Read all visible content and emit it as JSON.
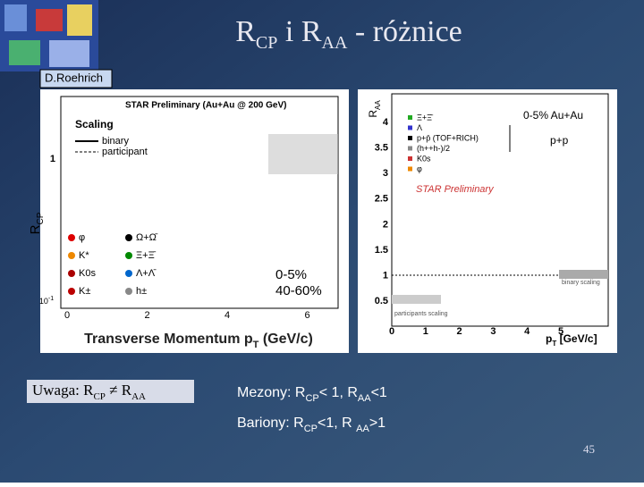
{
  "header": {
    "title": [
      "R",
      "CP",
      " i  R",
      "AA",
      " - różnice"
    ],
    "author": "D.Roehrich"
  },
  "left_plot": {
    "title": "STAR Preliminary (Au+Au @ 200 GeV)",
    "scaling_title": "Scaling",
    "scaling": [
      "binary",
      "participant"
    ],
    "y_label": [
      "R",
      "CP"
    ],
    "y_ticks": [
      [
        "1"
      ],
      [
        "10",
        "-1"
      ]
    ],
    "x_ticks": [
      "0",
      "2",
      "4",
      "6"
    ],
    "x_label": [
      "Transverse Momentum ",
      "p",
      "T",
      " (GeV/c)"
    ],
    "legend": [
      "φ",
      "Ω+Ω̄",
      "K*",
      "Ξ+Ξ̄",
      "K0s",
      "Λ+Λ̄",
      "K±",
      "h±"
    ],
    "centrality": [
      "0-5%",
      "40-60%"
    ]
  },
  "right_plot": {
    "y_label": [
      "R",
      "AA"
    ],
    "y_ticks": [
      "4",
      "3.5",
      "3",
      "2.5",
      "2",
      "1.5",
      "1",
      "0.5"
    ],
    "x_ticks": [
      "0",
      "1",
      "2",
      "3",
      "4",
      "5"
    ],
    "collision": "0-5%  Au+Au",
    "reference": "p+p",
    "watermark": "STAR Preliminary",
    "legend": [
      "Ξ+Ξ̄",
      "Λ",
      "p+p̄  (TOF+RICH)",
      "(h++h-)/2",
      "K0s",
      "φ"
    ],
    "binary": "binary scaling",
    "participants": "participants scaling",
    "x_label": [
      "p",
      "T",
      " [GeV/c]"
    ]
  },
  "notes": {
    "uwaga": [
      "Uwaga: R",
      "CP",
      "  ≠  R",
      "AA"
    ],
    "mezony": [
      "Mezony:  R",
      "CP",
      "< 1,  R",
      "AA",
      "<1"
    ],
    "bariony": [
      "Bariony:   R",
      "CP",
      "<1,  R ",
      "AA",
      ">1"
    ],
    "page": "45"
  }
}
